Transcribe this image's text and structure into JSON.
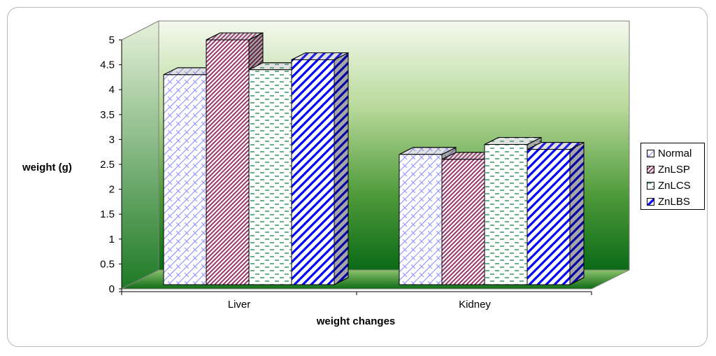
{
  "chart_data": {
    "type": "bar",
    "title": "",
    "xlabel": "weight changes",
    "ylabel": "weight (g)",
    "ylim": [
      0,
      5
    ],
    "yticks": [
      "0",
      "0.5",
      "1",
      "1.5",
      "2",
      "2.5",
      "3",
      "3.5",
      "4",
      "4.5",
      "5"
    ],
    "categories": [
      "Liver",
      "Kidney"
    ],
    "series": [
      {
        "name": "Normal",
        "values": [
          4.3,
          2.7
        ],
        "color": "#9999ff",
        "pattern": "diagonal-cross"
      },
      {
        "name": "ZnLSP",
        "values": [
          5.0,
          2.6
        ],
        "color": "#993366",
        "pattern": "dense-diagonal"
      },
      {
        "name": "ZnLCS",
        "values": [
          4.4,
          2.9
        ],
        "color": "#339966",
        "pattern": "dashed-horizontal"
      },
      {
        "name": "ZnLBS",
        "values": [
          4.6,
          2.8
        ],
        "color": "#0000ff",
        "pattern": "wide-diagonal"
      }
    ],
    "legend": "right",
    "grid": false,
    "background": "gradient-green"
  }
}
